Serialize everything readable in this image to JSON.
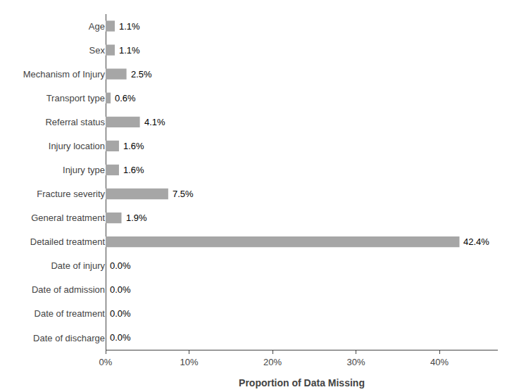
{
  "chart_data": {
    "type": "bar",
    "orientation": "horizontal",
    "categories": [
      "Date of discharge",
      "Date of treatment",
      "Date of admission",
      "Date of injury",
      "Detailed treatment",
      "General treatment",
      "Fracture severity",
      "Injury type",
      "Injury location",
      "Referral status",
      "Transport type",
      "Mechanism of Injury",
      "Sex",
      "Age"
    ],
    "values": [
      0.0,
      0.0,
      0.0,
      0.0,
      42.4,
      1.9,
      7.5,
      1.6,
      1.6,
      4.1,
      0.6,
      2.5,
      1.1,
      1.1
    ],
    "value_labels": [
      "0.0%",
      "0.0%",
      "0.0%",
      "0.0%",
      "42.4%",
      "1.9%",
      "7.5%",
      "1.6%",
      "1.6%",
      "4.1%",
      "0.6%",
      "2.5%",
      "1.1%",
      "1.1%"
    ],
    "data_labels": true,
    "color": "#a6a6a6",
    "xlabel": "Proportion of Data Missing",
    "xlim": [
      0,
      47
    ],
    "xticks": [
      {
        "value": 0,
        "label": "0%"
      },
      {
        "value": 10,
        "label": "10%"
      },
      {
        "value": 20,
        "label": "20%"
      },
      {
        "value": 30,
        "label": "30%"
      },
      {
        "value": 40,
        "label": "40%"
      }
    ],
    "grid": false
  }
}
